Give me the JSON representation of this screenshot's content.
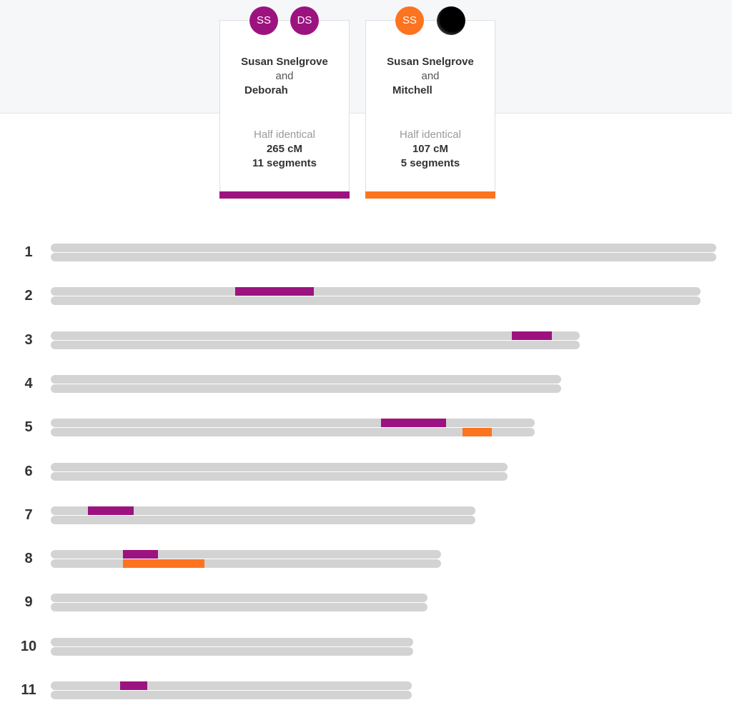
{
  "colors": {
    "purple": "#9c1380",
    "orange": "#fc7320",
    "track": "#d3d3d3"
  },
  "matches": [
    {
      "avatar_a": "SS",
      "avatar_b": "DS",
      "name_a": "Susan Snelgrove",
      "connector": "and",
      "name_b": "Deborah",
      "relation": "Half identical",
      "cm": "265 cM",
      "segments": "11 segments",
      "color": "#9c1380"
    },
    {
      "avatar_a": "SS",
      "avatar_b_icon": "redacted-avatar-icon",
      "name_a": "Susan Snelgrove",
      "connector": "and",
      "name_b": "Mitchell",
      "relation": "Half identical",
      "cm": "107 cM",
      "segments": "5 segments",
      "color": "#fc7320"
    }
  ],
  "chromosomes": [
    {
      "label": "1",
      "length": 249,
      "segments": []
    },
    {
      "label": "2",
      "length": 243,
      "segments": [
        {
          "strand": 0,
          "match": 0,
          "start": 69,
          "end": 98.5
        }
      ]
    },
    {
      "label": "3",
      "length": 198,
      "segments": [
        {
          "strand": 0,
          "match": 0,
          "start": 172.5,
          "end": 187.5
        }
      ]
    },
    {
      "label": "4",
      "length": 191,
      "segments": []
    },
    {
      "label": "5",
      "length": 181,
      "segments": [
        {
          "strand": 0,
          "match": 0,
          "start": 123.5,
          "end": 148
        },
        {
          "strand": 1,
          "match": 1,
          "start": 154,
          "end": 165
        }
      ]
    },
    {
      "label": "6",
      "length": 171,
      "segments": []
    },
    {
      "label": "7",
      "length": 159,
      "segments": [
        {
          "strand": 0,
          "match": 0,
          "start": 14,
          "end": 31
        }
      ]
    },
    {
      "label": "8",
      "length": 146,
      "segments": [
        {
          "strand": 0,
          "match": 0,
          "start": 27,
          "end": 40
        },
        {
          "strand": 1,
          "match": 1,
          "start": 27,
          "end": 57.5
        }
      ]
    },
    {
      "label": "9",
      "length": 141,
      "segments": []
    },
    {
      "label": "10",
      "length": 135.5,
      "segments": []
    },
    {
      "label": "11",
      "length": 135,
      "segments": [
        {
          "strand": 0,
          "match": 0,
          "start": 26,
          "end": 36
        }
      ]
    }
  ]
}
